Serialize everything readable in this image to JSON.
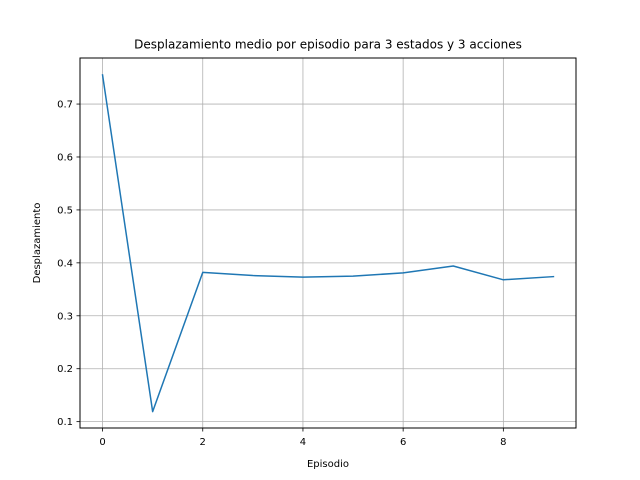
{
  "chart_data": {
    "type": "line",
    "title": "Desplazamiento medio por episodio para 3 estados y 3 acciones",
    "xlabel": "Episodio",
    "ylabel": "Desplazamiento",
    "xlim": [
      -0.45,
      9.45
    ],
    "ylim": [
      0.088,
      0.787
    ],
    "xticks": [
      0,
      2,
      4,
      6,
      8
    ],
    "yticks": [
      0.1,
      0.2,
      0.3,
      0.4,
      0.5,
      0.6,
      0.7
    ],
    "xtick_labels": [
      "0",
      "2",
      "4",
      "6",
      "8"
    ],
    "ytick_labels": [
      "0.1",
      "0.2",
      "0.3",
      "0.4",
      "0.5",
      "0.6",
      "0.7"
    ],
    "grid": true,
    "colors": {
      "line": "#1f77b4",
      "grid": "#b0b0b0",
      "axes": "#000000"
    },
    "series": [
      {
        "x": [
          0,
          1,
          2,
          3,
          4,
          5,
          6,
          7,
          8,
          9
        ],
        "values": [
          0.755,
          0.119,
          0.382,
          0.376,
          0.373,
          0.375,
          0.381,
          0.394,
          0.368,
          0.374
        ]
      }
    ]
  }
}
